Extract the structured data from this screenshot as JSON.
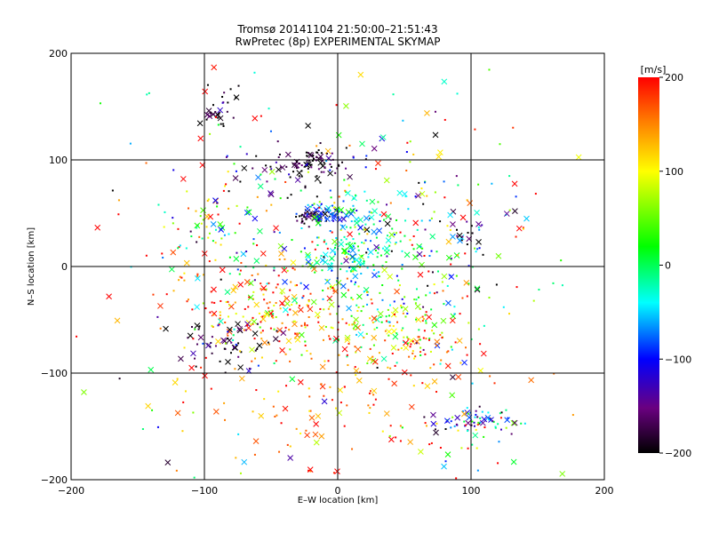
{
  "chart_data": {
    "type": "scatter",
    "title": "Tromsø 20141104 21:50:00–21:51:43",
    "subtitle": "RwPretec (8p) EXPERIMENTAL SKYMAP",
    "xlabel": "E–W location [km]",
    "ylabel": "N–S location [km]",
    "xlim": [
      -200,
      200
    ],
    "ylim": [
      -200,
      200
    ],
    "xticks": [
      -200,
      -100,
      0,
      100,
      200
    ],
    "yticks": [
      -200,
      -100,
      0,
      100,
      200
    ],
    "xtick_labels": [
      "−200",
      "−100",
      "0",
      "100",
      "200"
    ],
    "ytick_labels": [
      "−200",
      "−100",
      "0",
      "100",
      "200"
    ],
    "grid": true,
    "markers": [
      "dot",
      "cross"
    ],
    "colorbar": {
      "label": "[m/s]",
      "range": [
        -200,
        200
      ],
      "ticks": [
        200,
        100,
        0,
        -100,
        -200
      ],
      "tick_labels": [
        "200",
        "100",
        "0",
        "−100",
        "−200"
      ],
      "colors": [
        "#000000",
        "#6a0080",
        "#0000ff",
        "#00ffff",
        "#00ff00",
        "#ffff00",
        "#ff8000",
        "#ff0000"
      ]
    },
    "clusters": [
      {
        "center": [
          -20,
          98
        ],
        "spread": [
          14,
          7
        ],
        "count": 70,
        "value": -190,
        "value_spread": 25
      },
      {
        "center": [
          -35,
          85
        ],
        "spread": [
          20,
          12
        ],
        "count": 35,
        "value": -170,
        "value_spread": 60
      },
      {
        "center": [
          -20,
          47
        ],
        "spread": [
          8,
          4
        ],
        "count": 40,
        "value": -190,
        "value_spread": 20
      },
      {
        "center": [
          -5,
          50
        ],
        "spread": [
          12,
          5
        ],
        "count": 45,
        "value": -90,
        "value_spread": 25
      },
      {
        "center": [
          15,
          45
        ],
        "spread": [
          20,
          12
        ],
        "count": 55,
        "value": -20,
        "value_spread": 60
      },
      {
        "center": [
          10,
          10
        ],
        "spread": [
          18,
          12
        ],
        "count": 120,
        "value": -10,
        "value_spread": 45
      },
      {
        "center": [
          -40,
          -40
        ],
        "spread": [
          30,
          20
        ],
        "count": 150,
        "value": 150,
        "value_spread": 60
      },
      {
        "center": [
          35,
          -45
        ],
        "spread": [
          25,
          20
        ],
        "count": 110,
        "value": 20,
        "value_spread": 70
      },
      {
        "center": [
          -90,
          -75
        ],
        "spread": [
          18,
          12
        ],
        "count": 60,
        "value": -180,
        "value_spread": 40
      },
      {
        "center": [
          -90,
          145
        ],
        "spread": [
          8,
          8
        ],
        "count": 30,
        "value": -185,
        "value_spread": 30
      },
      {
        "center": [
          105,
          -145
        ],
        "spread": [
          15,
          6
        ],
        "count": 70,
        "value": -60,
        "value_spread": 90
      },
      {
        "center": [
          55,
          -70
        ],
        "spread": [
          25,
          20
        ],
        "count": 60,
        "value": 160,
        "value_spread": 50
      },
      {
        "center": [
          -80,
          -20
        ],
        "spread": [
          40,
          25
        ],
        "count": 60,
        "value": 120,
        "value_spread": 120
      },
      {
        "center": [
          -90,
          40
        ],
        "spread": [
          20,
          20
        ],
        "count": 55,
        "value": 40,
        "value_spread": 120
      },
      {
        "center": [
          90,
          20
        ],
        "spread": [
          25,
          25
        ],
        "count": 40,
        "value": -150,
        "value_spread": 60
      },
      {
        "center": [
          60,
          50
        ],
        "spread": [
          40,
          40
        ],
        "count": 70,
        "value": 0,
        "value_spread": 150
      },
      {
        "center": [
          0,
          -120
        ],
        "spread": [
          60,
          40
        ],
        "count": 130,
        "value": 170,
        "value_spread": 40
      },
      {
        "center": [
          0,
          0
        ],
        "spread": [
          110,
          110
        ],
        "count": 350,
        "value": 60,
        "value_spread": 140
      }
    ]
  }
}
